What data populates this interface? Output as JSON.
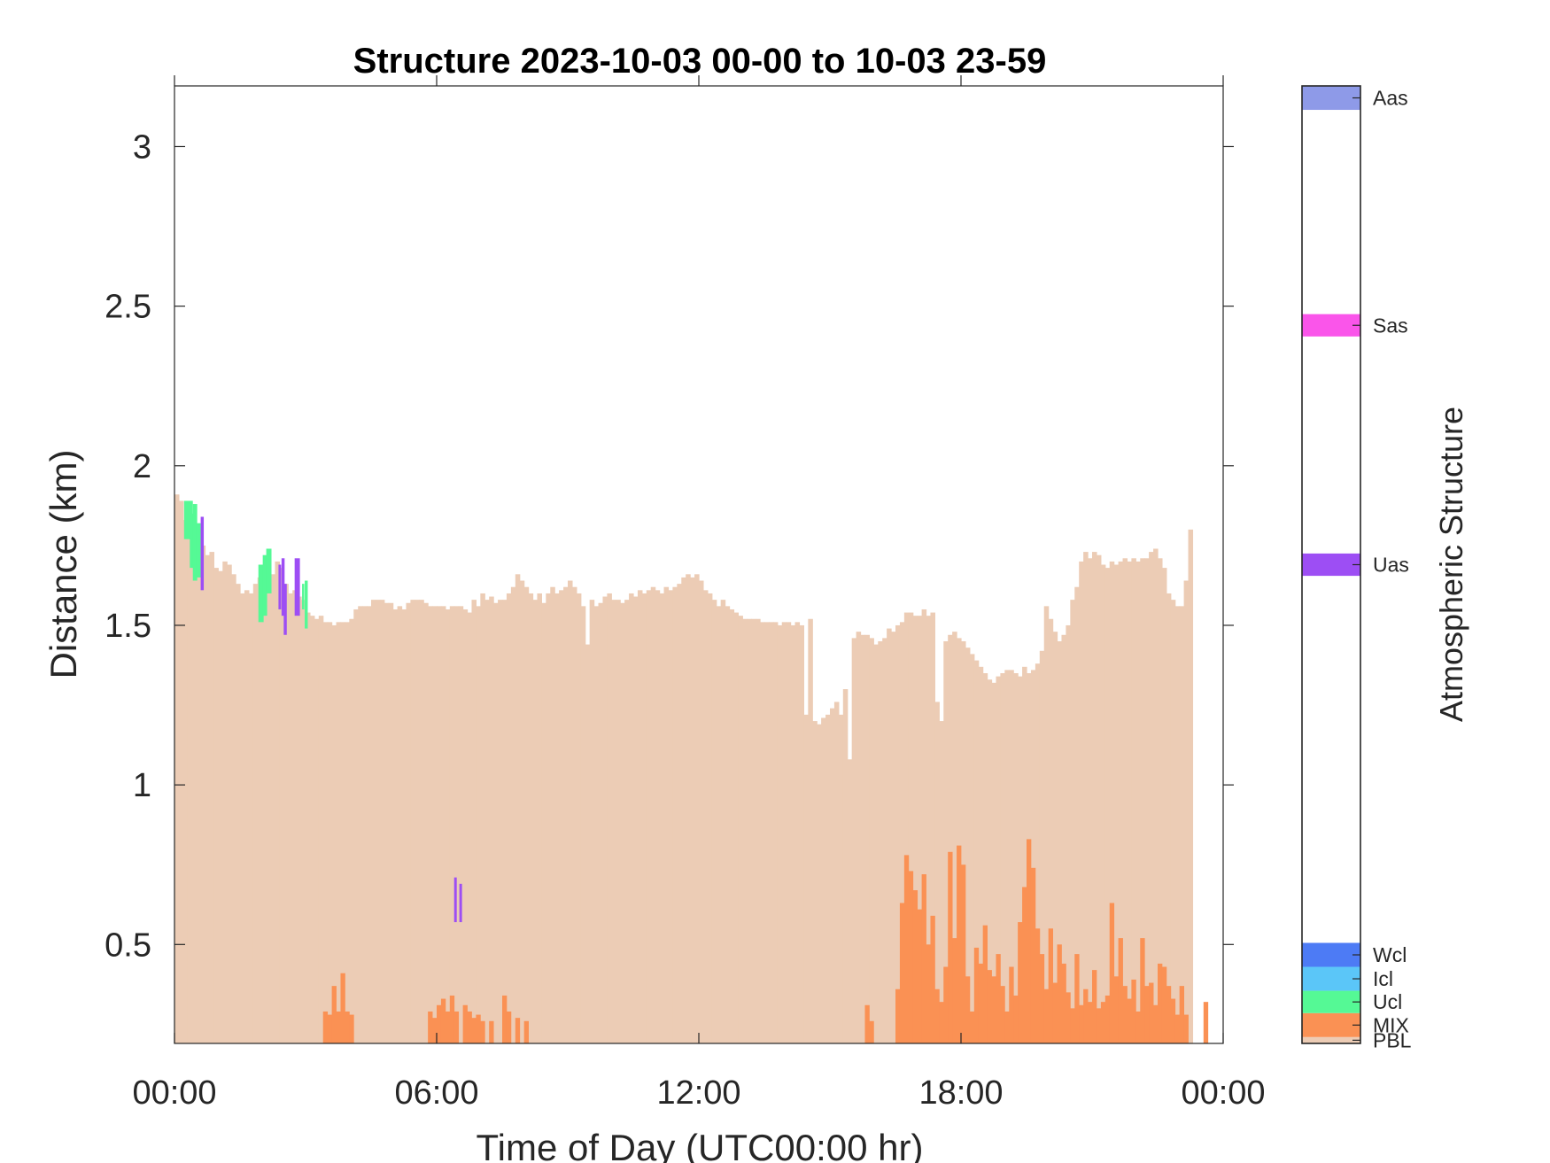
{
  "chart_data": {
    "type": "heatmap",
    "title": "Structure 2023-10-03 00-00 to 10-03 23-59",
    "xlabel": "Time of Day (UTC00:00 hr)",
    "ylabel": "Distance (km)",
    "xlim": [
      0,
      24
    ],
    "ylim": [
      0.19,
      3.19
    ],
    "x_ticks": [
      {
        "value": 0,
        "label": "00:00"
      },
      {
        "value": 6,
        "label": "06:00"
      },
      {
        "value": 12,
        "label": "12:00"
      },
      {
        "value": 18,
        "label": "18:00"
      },
      {
        "value": 24,
        "label": "00:00"
      }
    ],
    "y_ticks": [
      {
        "value": 0.5,
        "label": "0.5"
      },
      {
        "value": 1,
        "label": "1"
      },
      {
        "value": 1.5,
        "label": "1.5"
      },
      {
        "value": 2,
        "label": "2"
      },
      {
        "value": 2.5,
        "label": "2.5"
      },
      {
        "value": 3,
        "label": "3"
      }
    ],
    "colorbar": {
      "label": "Atmospheric Structure",
      "categories": [
        {
          "name": "PBL",
          "color": "#ecccb5",
          "range": [
            0,
            0.02
          ]
        },
        {
          "name": "MIX",
          "color": "#fa9154",
          "range": [
            0.02,
            0.095
          ]
        },
        {
          "name": "Ucl",
          "color": "#55f995",
          "range": [
            0.095,
            0.165
          ]
        },
        {
          "name": "Icl",
          "color": "#5bc6f8",
          "range": [
            0.165,
            0.24
          ]
        },
        {
          "name": "Wcl",
          "color": "#4d7bf5",
          "range": [
            0.24,
            0.315
          ]
        },
        {
          "name": "Uas",
          "color": "#9d4ef4",
          "range": [
            1.465,
            1.535
          ]
        },
        {
          "name": "Sas",
          "color": "#fa55ea",
          "range": [
            2.215,
            2.285
          ]
        },
        {
          "name": "Aas",
          "color": "#8e9ae8",
          "range": [
            2.925,
            3.0
          ]
        }
      ]
    },
    "pbl_top": {
      "x_step": 0.1,
      "heights": [
        1.91,
        1.89,
        1.83,
        1.87,
        1.84,
        1.8,
        1.75,
        1.72,
        1.73,
        1.68,
        1.67,
        1.7,
        1.69,
        1.66,
        1.63,
        1.6,
        1.61,
        1.6,
        1.63,
        1.65,
        1.67,
        1.69,
        1.66,
        1.7,
        1.68,
        1.63,
        1.6,
        1.61,
        1.59,
        1.58,
        1.54,
        1.53,
        1.52,
        1.53,
        1.51,
        1.51,
        1.5,
        1.51,
        1.51,
        1.51,
        1.52,
        1.55,
        1.56,
        1.56,
        1.56,
        1.58,
        1.58,
        1.58,
        1.57,
        1.57,
        1.55,
        1.56,
        1.55,
        1.57,
        1.58,
        1.58,
        1.58,
        1.57,
        1.56,
        1.56,
        1.56,
        1.56,
        1.55,
        1.56,
        1.56,
        1.56,
        1.55,
        1.54,
        1.58,
        1.56,
        1.6,
        1.58,
        1.59,
        1.57,
        1.58,
        1.58,
        1.6,
        1.62,
        1.66,
        1.64,
        1.62,
        1.6,
        1.58,
        1.6,
        1.57,
        1.6,
        1.62,
        1.6,
        1.61,
        1.62,
        1.64,
        1.62,
        1.6,
        1.56,
        1.44,
        1.58,
        1.56,
        1.57,
        1.59,
        1.6,
        1.58,
        1.58,
        1.57,
        1.58,
        1.6,
        1.59,
        1.61,
        1.6,
        1.61,
        1.62,
        1.61,
        1.6,
        1.62,
        1.61,
        1.62,
        1.63,
        1.65,
        1.66,
        1.65,
        1.66,
        1.64,
        1.61,
        1.6,
        1.58,
        1.56,
        1.58,
        1.56,
        1.55,
        1.54,
        1.53,
        1.52,
        1.52,
        1.52,
        1.52,
        1.51,
        1.51,
        1.51,
        1.51,
        1.5,
        1.51,
        1.51,
        1.5,
        1.51,
        1.5,
        1.22,
        1.52,
        1.2,
        1.19,
        1.21,
        1.22,
        1.24,
        1.26,
        1.22,
        1.3,
        1.08,
        1.46,
        1.48,
        1.47,
        1.47,
        1.46,
        1.44,
        1.45,
        1.46,
        1.49,
        1.48,
        1.5,
        1.51,
        1.54,
        1.54,
        1.53,
        1.53,
        1.55,
        1.53,
        1.54,
        1.26,
        1.2,
        1.45,
        1.47,
        1.48,
        1.46,
        1.45,
        1.43,
        1.41,
        1.39,
        1.37,
        1.35,
        1.33,
        1.32,
        1.34,
        1.35,
        1.36,
        1.36,
        1.35,
        1.34,
        1.37,
        1.35,
        1.36,
        1.38,
        1.42,
        1.56,
        1.52,
        1.48,
        1.45,
        1.47,
        1.5,
        1.58,
        1.62,
        1.7,
        1.73,
        1.71,
        1.73,
        1.72,
        1.69,
        1.68,
        1.7,
        1.69,
        1.7,
        1.71,
        1.7,
        1.71,
        1.7,
        1.71,
        1.71,
        1.73,
        1.74,
        1.71,
        1.68,
        1.6,
        1.58,
        1.56,
        1.56,
        1.64,
        1.8
      ]
    },
    "mix_bars": [
      {
        "x": 3.4,
        "top": 0.29
      },
      {
        "x": 3.5,
        "top": 0.28
      },
      {
        "x": 3.6,
        "top": 0.37
      },
      {
        "x": 3.7,
        "top": 0.29
      },
      {
        "x": 3.8,
        "top": 0.41
      },
      {
        "x": 3.9,
        "top": 0.29
      },
      {
        "x": 4.0,
        "top": 0.28
      },
      {
        "x": 5.8,
        "top": 0.29
      },
      {
        "x": 5.9,
        "top": 0.27
      },
      {
        "x": 6.0,
        "top": 0.31
      },
      {
        "x": 6.1,
        "top": 0.33
      },
      {
        "x": 6.2,
        "top": 0.29
      },
      {
        "x": 6.3,
        "top": 0.34
      },
      {
        "x": 6.4,
        "top": 0.29
      },
      {
        "x": 6.6,
        "top": 0.31
      },
      {
        "x": 6.7,
        "top": 0.29
      },
      {
        "x": 6.8,
        "top": 0.27
      },
      {
        "x": 6.9,
        "top": 0.28
      },
      {
        "x": 7.0,
        "top": 0.26
      },
      {
        "x": 7.2,
        "top": 0.26
      },
      {
        "x": 7.5,
        "top": 0.34
      },
      {
        "x": 7.6,
        "top": 0.29
      },
      {
        "x": 7.8,
        "top": 0.27
      },
      {
        "x": 8.0,
        "top": 0.26
      },
      {
        "x": 15.8,
        "top": 0.31
      },
      {
        "x": 15.9,
        "top": 0.26
      },
      {
        "x": 16.5,
        "top": 0.36
      },
      {
        "x": 16.6,
        "top": 0.63
      },
      {
        "x": 16.7,
        "top": 0.78
      },
      {
        "x": 16.8,
        "top": 0.73
      },
      {
        "x": 16.9,
        "top": 0.67
      },
      {
        "x": 17.0,
        "top": 0.61
      },
      {
        "x": 17.1,
        "top": 0.72
      },
      {
        "x": 17.2,
        "top": 0.5
      },
      {
        "x": 17.3,
        "top": 0.59
      },
      {
        "x": 17.4,
        "top": 0.36
      },
      {
        "x": 17.5,
        "top": 0.32
      },
      {
        "x": 17.6,
        "top": 0.43
      },
      {
        "x": 17.7,
        "top": 0.79
      },
      {
        "x": 17.8,
        "top": 0.52
      },
      {
        "x": 17.9,
        "top": 0.81
      },
      {
        "x": 18.0,
        "top": 0.75
      },
      {
        "x": 18.1,
        "top": 0.4
      },
      {
        "x": 18.2,
        "top": 0.29
      },
      {
        "x": 18.3,
        "top": 0.49
      },
      {
        "x": 18.4,
        "top": 0.44
      },
      {
        "x": 18.5,
        "top": 0.56
      },
      {
        "x": 18.6,
        "top": 0.42
      },
      {
        "x": 18.7,
        "top": 0.4
      },
      {
        "x": 18.8,
        "top": 0.47
      },
      {
        "x": 18.9,
        "top": 0.37
      },
      {
        "x": 19.0,
        "top": 0.29
      },
      {
        "x": 19.1,
        "top": 0.43
      },
      {
        "x": 19.2,
        "top": 0.34
      },
      {
        "x": 19.3,
        "top": 0.57
      },
      {
        "x": 19.4,
        "top": 0.68
      },
      {
        "x": 19.5,
        "top": 0.83
      },
      {
        "x": 19.6,
        "top": 0.74
      },
      {
        "x": 19.7,
        "top": 0.55
      },
      {
        "x": 19.8,
        "top": 0.47
      },
      {
        "x": 19.9,
        "top": 0.36
      },
      {
        "x": 20.0,
        "top": 0.55
      },
      {
        "x": 20.1,
        "top": 0.38
      },
      {
        "x": 20.2,
        "top": 0.5
      },
      {
        "x": 20.3,
        "top": 0.44
      },
      {
        "x": 20.4,
        "top": 0.35
      },
      {
        "x": 20.5,
        "top": 0.3
      },
      {
        "x": 20.6,
        "top": 0.47
      },
      {
        "x": 20.7,
        "top": 0.31
      },
      {
        "x": 20.8,
        "top": 0.36
      },
      {
        "x": 20.9,
        "top": 0.32
      },
      {
        "x": 21.0,
        "top": 0.42
      },
      {
        "x": 21.1,
        "top": 0.3
      },
      {
        "x": 21.2,
        "top": 0.32
      },
      {
        "x": 21.3,
        "top": 0.34
      },
      {
        "x": 21.4,
        "top": 0.63
      },
      {
        "x": 21.5,
        "top": 0.4
      },
      {
        "x": 21.6,
        "top": 0.52
      },
      {
        "x": 21.7,
        "top": 0.37
      },
      {
        "x": 21.8,
        "top": 0.33
      },
      {
        "x": 21.9,
        "top": 0.39
      },
      {
        "x": 22.0,
        "top": 0.29
      },
      {
        "x": 22.1,
        "top": 0.52
      },
      {
        "x": 22.2,
        "top": 0.37
      },
      {
        "x": 22.3,
        "top": 0.38
      },
      {
        "x": 22.4,
        "top": 0.31
      },
      {
        "x": 22.5,
        "top": 0.44
      },
      {
        "x": 22.6,
        "top": 0.43
      },
      {
        "x": 22.7,
        "top": 0.37
      },
      {
        "x": 22.8,
        "top": 0.33
      },
      {
        "x": 22.9,
        "top": 0.28
      },
      {
        "x": 23.0,
        "top": 0.37
      },
      {
        "x": 23.1,
        "top": 0.28
      },
      {
        "x": 23.55,
        "top": 0.32
      }
    ],
    "cloud_segments": [
      {
        "class": "Ucl",
        "x": 0.22,
        "w": 0.2,
        "y0": 1.77,
        "y1": 1.89
      },
      {
        "class": "Ucl",
        "x": 0.35,
        "w": 0.1,
        "y0": 1.68,
        "y1": 1.85
      },
      {
        "class": "Ucl",
        "x": 0.42,
        "w": 0.1,
        "y0": 1.64,
        "y1": 1.88
      },
      {
        "class": "Ucl",
        "x": 0.5,
        "w": 0.1,
        "y0": 1.65,
        "y1": 1.82
      },
      {
        "class": "Uas",
        "x": 0.6,
        "w": 0.07,
        "y0": 1.61,
        "y1": 1.84
      },
      {
        "class": "Ucl",
        "x": 1.92,
        "w": 0.12,
        "y0": 1.51,
        "y1": 1.69
      },
      {
        "class": "Ucl",
        "x": 2.02,
        "w": 0.1,
        "y0": 1.53,
        "y1": 1.72
      },
      {
        "class": "Ucl",
        "x": 2.1,
        "w": 0.12,
        "y0": 1.6,
        "y1": 1.74
      },
      {
        "class": "Uas",
        "x": 2.38,
        "w": 0.06,
        "y0": 1.55,
        "y1": 1.69
      },
      {
        "class": "Uas",
        "x": 2.45,
        "w": 0.07,
        "y0": 1.53,
        "y1": 1.71
      },
      {
        "class": "Uas",
        "x": 2.5,
        "w": 0.07,
        "y0": 1.47,
        "y1": 1.63
      },
      {
        "class": "Uas",
        "x": 2.75,
        "w": 0.12,
        "y0": 1.53,
        "y1": 1.71
      },
      {
        "class": "Ucl",
        "x": 2.98,
        "w": 0.07,
        "y0": 1.49,
        "y1": 1.64
      },
      {
        "class": "Ucl",
        "x": 2.92,
        "w": 0.05,
        "y0": 1.55,
        "y1": 1.63
      },
      {
        "class": "Uas",
        "x": 6.4,
        "w": 0.06,
        "y0": 0.57,
        "y1": 0.71
      },
      {
        "class": "Uas",
        "x": 6.52,
        "w": 0.06,
        "y0": 0.57,
        "y1": 0.69
      }
    ]
  }
}
